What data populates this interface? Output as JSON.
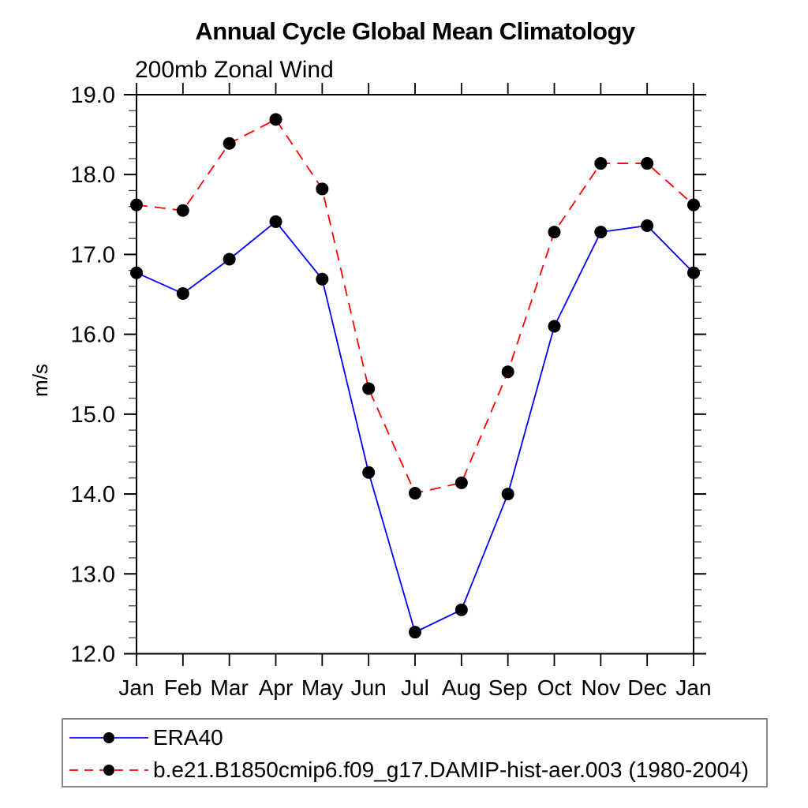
{
  "title": "Annual Cycle Global Mean Climatology",
  "subtitle": "200mb Zonal Wind",
  "colors": {
    "era40_line": "#0000ff",
    "model_line": "#ff0000",
    "marker": "#000000",
    "axis": "#000000",
    "minor_tick": "#444444",
    "legend_border": "#888888"
  },
  "chart_data": {
    "type": "line",
    "title": "Annual Cycle Global Mean Climatology",
    "subtitle": "200mb Zonal Wind",
    "ylabel": "m/s",
    "xlabel": "",
    "categories": [
      "Jan",
      "Feb",
      "Mar",
      "Apr",
      "May",
      "Jun",
      "Jul",
      "Aug",
      "Sep",
      "Oct",
      "Nov",
      "Dec",
      "Jan"
    ],
    "series": [
      {
        "name": "ERA40",
        "color": "#0000ff",
        "line_style": "solid",
        "marker": "black-dot",
        "values": [
          16.77,
          16.51,
          16.94,
          17.41,
          16.69,
          14.27,
          12.27,
          12.55,
          14.0,
          16.1,
          17.28,
          17.36,
          16.77
        ]
      },
      {
        "name": "b.e21.B1850cmip6.f09_g17.DAMIP-hist-aer.003 (1980-2004)",
        "color": "#ff0000",
        "line_style": "dashed",
        "marker": "black-dot",
        "values": [
          17.62,
          17.55,
          18.39,
          18.69,
          17.82,
          15.32,
          14.01,
          14.14,
          15.53,
          17.28,
          18.14,
          18.14,
          17.62
        ]
      }
    ],
    "ylim": [
      12.0,
      19.0
    ],
    "ytick_major": 1.0,
    "ytick_minor": 0.2,
    "ytick_labels": [
      "12.0",
      "13.0",
      "14.0",
      "15.0",
      "16.0",
      "17.0",
      "18.0",
      "19.0"
    ],
    "grid": false,
    "tick_direction": "out",
    "legend_position": "bottom-left-box"
  }
}
